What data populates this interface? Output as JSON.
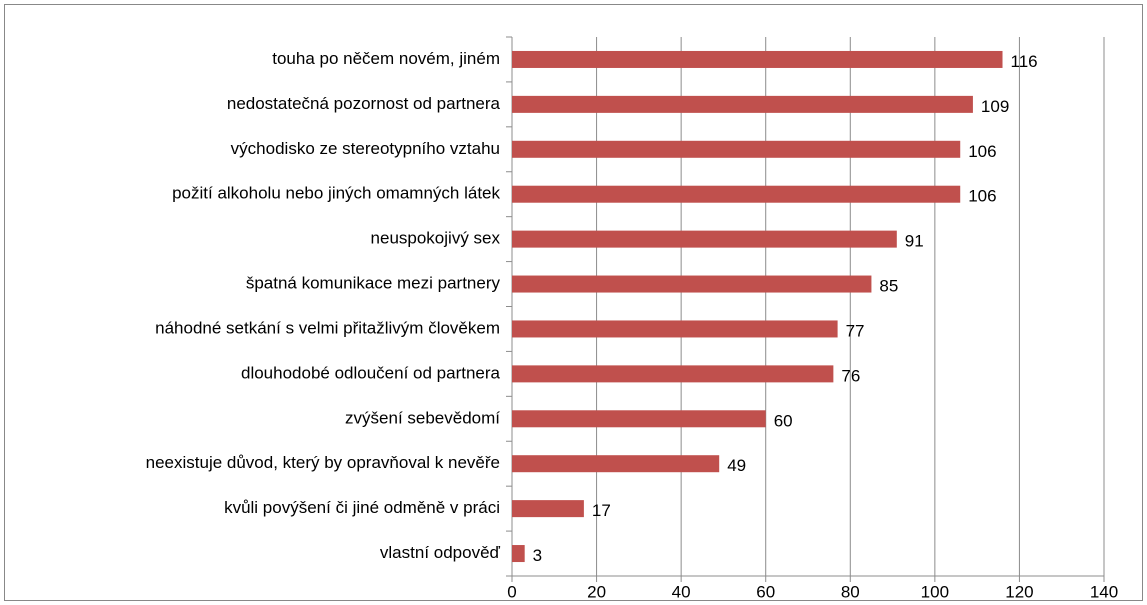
{
  "chart_data": {
    "type": "bar",
    "orientation": "horizontal",
    "categories": [
      "touha po něčem novém, jiném",
      "nedostatečná pozornost od partnera",
      "východisko ze stereotypního vztahu",
      "požití alkoholu nebo jiných omamných látek",
      "neuspokojivý sex",
      "špatná komunikace mezi partnery",
      "náhodné setkání s velmi přitažlivým člověkem",
      "dlouhodobé odloučení od partnera",
      "zvýšení sebevědomí",
      "neexistuje důvod, který by opravňoval k nevěře",
      "kvůli povýšení či jiné odměně v práci",
      "vlastní odpověď"
    ],
    "values": [
      116,
      109,
      106,
      106,
      91,
      85,
      77,
      76,
      60,
      49,
      17,
      3
    ],
    "color": "#c0504d",
    "xlim": [
      0,
      140
    ],
    "xticks": [
      0,
      20,
      40,
      60,
      80,
      100,
      120,
      140
    ],
    "grid": true
  }
}
